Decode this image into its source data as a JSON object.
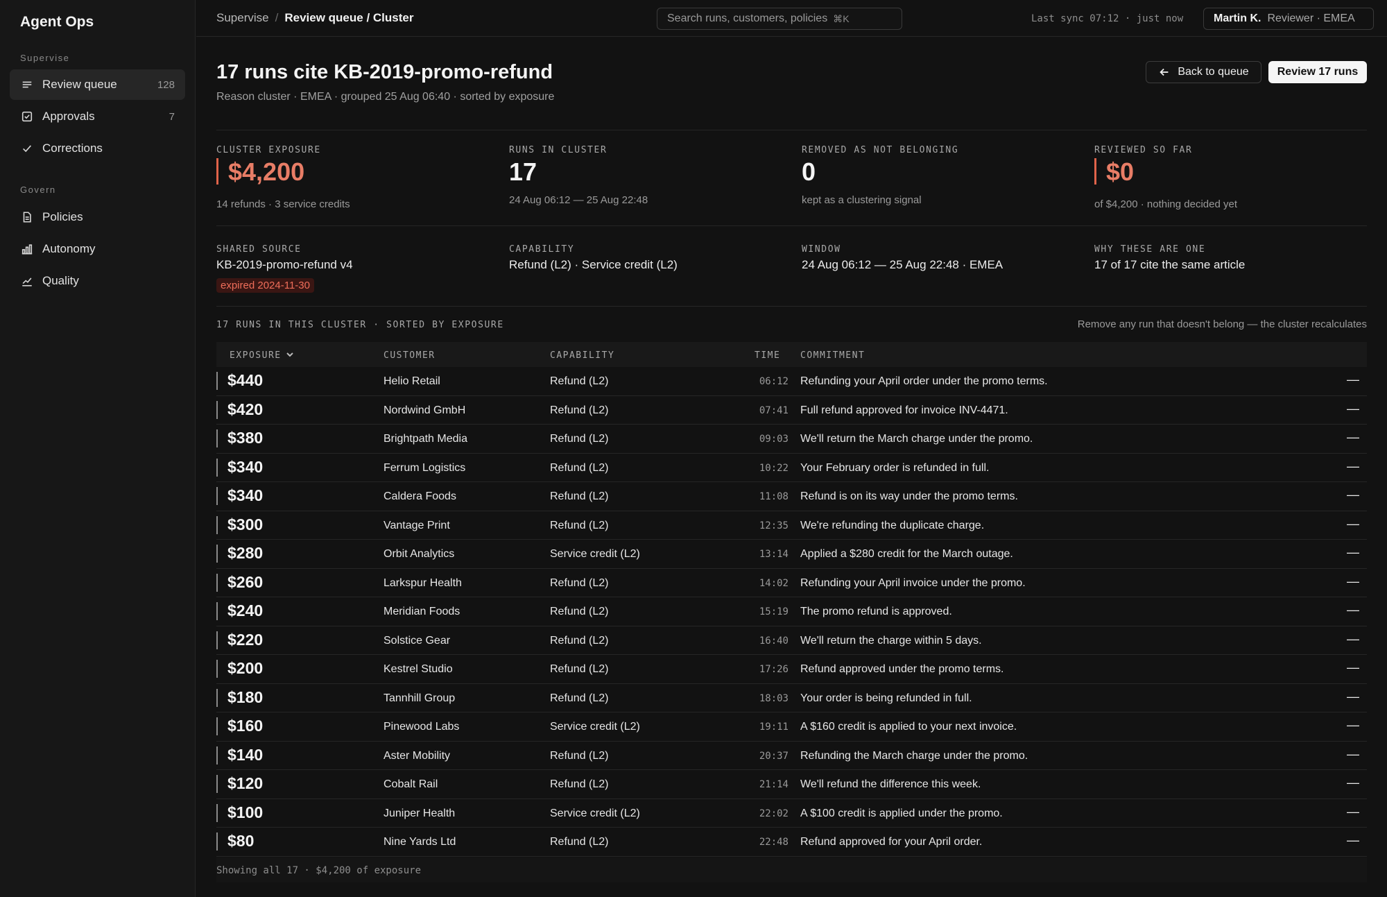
{
  "app": {
    "name": "Agent Ops"
  },
  "sidebar": {
    "sections": [
      {
        "label": "Supervise"
      },
      {
        "label": "Govern"
      }
    ],
    "items": [
      {
        "label": "Review queue",
        "count": "128",
        "icon": "list-icon",
        "active": true
      },
      {
        "label": "Approvals",
        "count": "7",
        "icon": "checkbox-icon"
      },
      {
        "label": "Corrections",
        "count": "",
        "icon": "check-icon"
      },
      {
        "label": "Policies",
        "count": "",
        "icon": "document-icon"
      },
      {
        "label": "Autonomy",
        "count": "",
        "icon": "bar-chart-icon"
      },
      {
        "label": "Quality",
        "count": "",
        "icon": "line-chart-icon"
      }
    ]
  },
  "topbar": {
    "breadcrumb": {
      "root": "Supervise",
      "separator": "/",
      "current": "Review queue / Cluster"
    },
    "search": {
      "placeholder": "Search runs, customers, policies",
      "shortcut": "⌘K"
    },
    "sync": "Last sync 07:12 · just now",
    "user": {
      "name": "Martin K.",
      "role": "Reviewer · EMEA"
    }
  },
  "header": {
    "title": "17 runs cite KB-2019-promo-refund",
    "subtitle": "Reason cluster · EMEA · grouped 25 Aug 06:40 · sorted by exposure",
    "back_button": "Back to queue",
    "review_button": "Review 17 runs"
  },
  "stats": [
    {
      "label": "CLUSTER EXPOSURE",
      "value": "$4,200",
      "note": "14 refunds · 3 service credits",
      "accent": true
    },
    {
      "label": "RUNS IN CLUSTER",
      "value": "17",
      "note": "24 Aug 06:12 — 25 Aug 22:48",
      "accent": false
    },
    {
      "label": "REMOVED AS NOT BELONGING",
      "value": "0",
      "note": "kept as a clustering signal",
      "accent": false
    },
    {
      "label": "REVIEWED SO FAR",
      "value": "$0",
      "note": "of $4,200 · nothing decided yet",
      "accent": true
    }
  ],
  "meta": [
    {
      "label": "SHARED SOURCE",
      "value": "KB-2019-promo-refund v4",
      "badge": "expired 2024-11-30"
    },
    {
      "label": "CAPABILITY",
      "value": "Refund (L2) · Service credit (L2)"
    },
    {
      "label": "WINDOW",
      "value": "24 Aug 06:12 — 25 Aug 22:48 · EMEA"
    },
    {
      "label": "WHY THESE ARE ONE",
      "value": "17 of 17 cite the same article"
    }
  ],
  "colors": {
    "accent": "#e0634a",
    "accent_text": "#e87d66",
    "badge_bg": "#3a1613",
    "badge_text": "#ef6e5a"
  },
  "table": {
    "caption": "17 RUNS IN THIS CLUSTER · SORTED BY EXPOSURE",
    "hint": "Remove any run that doesn't belong — the cluster recalculates",
    "columns": [
      "EXPOSURE",
      "CUSTOMER",
      "CAPABILITY",
      "TIME",
      "COMMITMENT"
    ],
    "remove_glyph": "—",
    "rows": [
      {
        "exposure": "$440",
        "customer": "Helio Retail",
        "capability": "Refund (L2)",
        "time": "06:12",
        "commitment": "Refunding your April order under the promo terms."
      },
      {
        "exposure": "$420",
        "customer": "Nordwind GmbH",
        "capability": "Refund (L2)",
        "time": "07:41",
        "commitment": "Full refund approved for invoice INV-4471."
      },
      {
        "exposure": "$380",
        "customer": "Brightpath Media",
        "capability": "Refund (L2)",
        "time": "09:03",
        "commitment": "We'll return the March charge under the promo."
      },
      {
        "exposure": "$340",
        "customer": "Ferrum Logistics",
        "capability": "Refund (L2)",
        "time": "10:22",
        "commitment": "Your February order is refunded in full."
      },
      {
        "exposure": "$340",
        "customer": "Caldera Foods",
        "capability": "Refund (L2)",
        "time": "11:08",
        "commitment": "Refund is on its way under the promo terms."
      },
      {
        "exposure": "$300",
        "customer": "Vantage Print",
        "capability": "Refund (L2)",
        "time": "12:35",
        "commitment": "We're refunding the duplicate charge."
      },
      {
        "exposure": "$280",
        "customer": "Orbit Analytics",
        "capability": "Service credit (L2)",
        "time": "13:14",
        "commitment": "Applied a $280 credit for the March outage."
      },
      {
        "exposure": "$260",
        "customer": "Larkspur Health",
        "capability": "Refund (L2)",
        "time": "14:02",
        "commitment": "Refunding your April invoice under the promo."
      },
      {
        "exposure": "$240",
        "customer": "Meridian Foods",
        "capability": "Refund (L2)",
        "time": "15:19",
        "commitment": "The promo refund is approved."
      },
      {
        "exposure": "$220",
        "customer": "Solstice Gear",
        "capability": "Refund (L2)",
        "time": "16:40",
        "commitment": "We'll return the charge within 5 days."
      },
      {
        "exposure": "$200",
        "customer": "Kestrel Studio",
        "capability": "Refund (L2)",
        "time": "17:26",
        "commitment": "Refund approved under the promo terms."
      },
      {
        "exposure": "$180",
        "customer": "Tannhill Group",
        "capability": "Refund (L2)",
        "time": "18:03",
        "commitment": "Your order is being refunded in full."
      },
      {
        "exposure": "$160",
        "customer": "Pinewood Labs",
        "capability": "Service credit (L2)",
        "time": "19:11",
        "commitment": "A $160 credit is applied to your next invoice."
      },
      {
        "exposure": "$140",
        "customer": "Aster Mobility",
        "capability": "Refund (L2)",
        "time": "20:37",
        "commitment": "Refunding the March charge under the promo."
      },
      {
        "exposure": "$120",
        "customer": "Cobalt Rail",
        "capability": "Refund (L2)",
        "time": "21:14",
        "commitment": "We'll refund the difference this week."
      },
      {
        "exposure": "$100",
        "customer": "Juniper Health",
        "capability": "Service credit (L2)",
        "time": "22:02",
        "commitment": "A $100 credit is applied under the promo."
      },
      {
        "exposure": "$80",
        "customer": "Nine Yards Ltd",
        "capability": "Refund (L2)",
        "time": "22:48",
        "commitment": "Refund approved for your April order."
      }
    ],
    "footer": "Showing all 17 · $4,200 of exposure"
  }
}
